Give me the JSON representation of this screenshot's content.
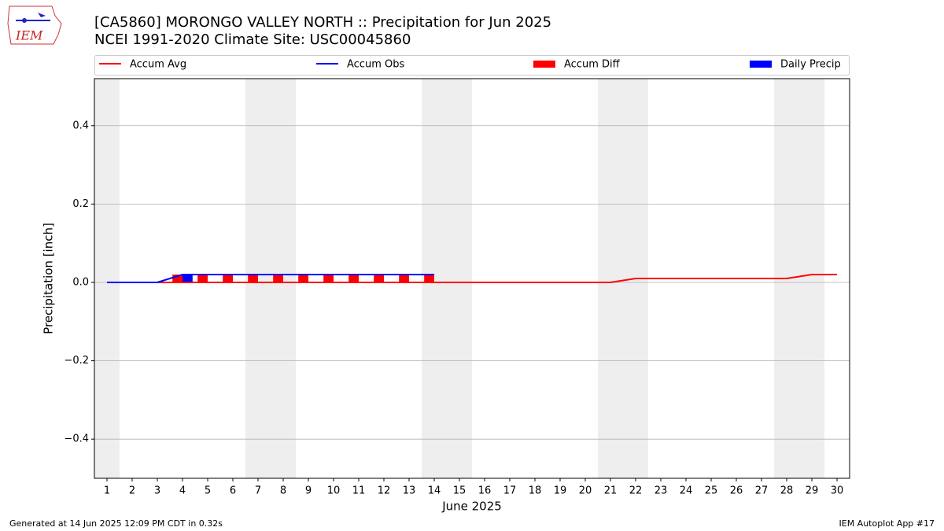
{
  "chart_data": {
    "type": "combo",
    "title": "[CA5860] MORONGO VALLEY NORTH :: Precipitation for Jun 2025",
    "subtitle": "NCEI 1991-2020 Climate Site: USC00045860",
    "x_label": "June 2025",
    "y_label": "Precipitation [inch]",
    "footer_left": "Generated at 14 Jun 2025 12:09 PM CDT in 0.32s",
    "footer_right": "IEM Autoplot App #17",
    "logo_text": "IEM",
    "x": [
      1,
      2,
      3,
      4,
      5,
      6,
      7,
      8,
      9,
      10,
      11,
      12,
      13,
      14,
      15,
      16,
      17,
      18,
      19,
      20,
      21,
      22,
      23,
      24,
      25,
      26,
      27,
      28,
      29,
      30
    ],
    "xlim": [
      0.5,
      30.5
    ],
    "xticks": [
      1,
      2,
      3,
      4,
      5,
      6,
      7,
      8,
      9,
      10,
      11,
      12,
      13,
      14,
      15,
      16,
      17,
      18,
      19,
      20,
      21,
      22,
      23,
      24,
      25,
      26,
      27,
      28,
      29,
      30
    ],
    "ylim": [
      -0.5,
      0.52
    ],
    "yticks": [
      {
        "value": -0.4,
        "label": "−0.4"
      },
      {
        "value": -0.2,
        "label": "−0.2"
      },
      {
        "value": 0,
        "label": "0.0"
      },
      0.2,
      0.4
    ],
    "grid": true,
    "shaded_spans": [
      [
        0.5,
        1.5
      ],
      [
        6.5,
        8.5
      ],
      [
        13.5,
        15.5
      ],
      [
        20.5,
        22.5
      ],
      [
        27.5,
        29.5
      ]
    ],
    "shade_color": "#eeeeee",
    "series": [
      {
        "name": "Accum Avg",
        "type": "line",
        "color": "#ff0000",
        "values": [
          0,
          0,
          0,
          0,
          0,
          0,
          0,
          0,
          0,
          0,
          0,
          0,
          0,
          0,
          0,
          0,
          0,
          0,
          0,
          0,
          0,
          0.01,
          0.01,
          0.01,
          0.01,
          0.01,
          0.01,
          0.01,
          0.02,
          0.02
        ]
      },
      {
        "name": "Accum Obs",
        "type": "line",
        "color": "#0000ff",
        "values": [
          0,
          0,
          0,
          0.02,
          0.02,
          0.02,
          0.02,
          0.02,
          0.02,
          0.02,
          0.02,
          0.02,
          0.02,
          0.02,
          null,
          null,
          null,
          null,
          null,
          null,
          null,
          null,
          null,
          null,
          null,
          null,
          null,
          null,
          null,
          null
        ]
      },
      {
        "name": "Accum Diff",
        "type": "bar",
        "side": "left",
        "color": "#ff0000",
        "values": [
          0,
          0,
          0,
          0.02,
          0.02,
          0.02,
          0.02,
          0.02,
          0.02,
          0.02,
          0.02,
          0.02,
          0.02,
          0.02,
          null,
          null,
          null,
          null,
          null,
          null,
          null,
          null,
          null,
          null,
          null,
          null,
          null,
          null,
          null,
          null
        ]
      },
      {
        "name": "Daily Precip",
        "type": "bar",
        "side": "right",
        "color": "#0000ff",
        "values": [
          0,
          0,
          0,
          0.02,
          0,
          0,
          0,
          0,
          0,
          0,
          0,
          0,
          0,
          0,
          null,
          null,
          null,
          null,
          null,
          null,
          null,
          null,
          null,
          null,
          null,
          null,
          null,
          null,
          null,
          null
        ]
      }
    ]
  }
}
